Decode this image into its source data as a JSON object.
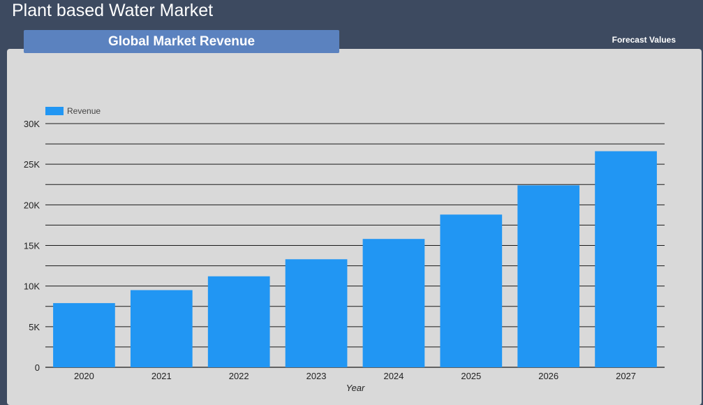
{
  "header": {
    "title": "Plant based Water Market",
    "tab_label": "Global Market Revenue",
    "forecast_label": "Forecast Values"
  },
  "colors": {
    "background": "#3d4a60",
    "panel": "#d9d9d9",
    "banner": "#5b82bf",
    "bar": "#2196f3"
  },
  "chart_data": {
    "type": "bar",
    "categories": [
      "2020",
      "2021",
      "2022",
      "2023",
      "2024",
      "2025",
      "2026",
      "2027"
    ],
    "series": [
      {
        "name": "Revenue",
        "values": [
          7900,
          9500,
          11200,
          13300,
          15800,
          18800,
          22400,
          26600
        ]
      }
    ],
    "xlabel": "Year",
    "ylabel": "",
    "ylim": [
      0,
      30000
    ],
    "yticks": [
      "0",
      "5K",
      "10K",
      "15K",
      "20K",
      "25K",
      "30K"
    ],
    "grid": true,
    "legend_position": "top-left"
  }
}
